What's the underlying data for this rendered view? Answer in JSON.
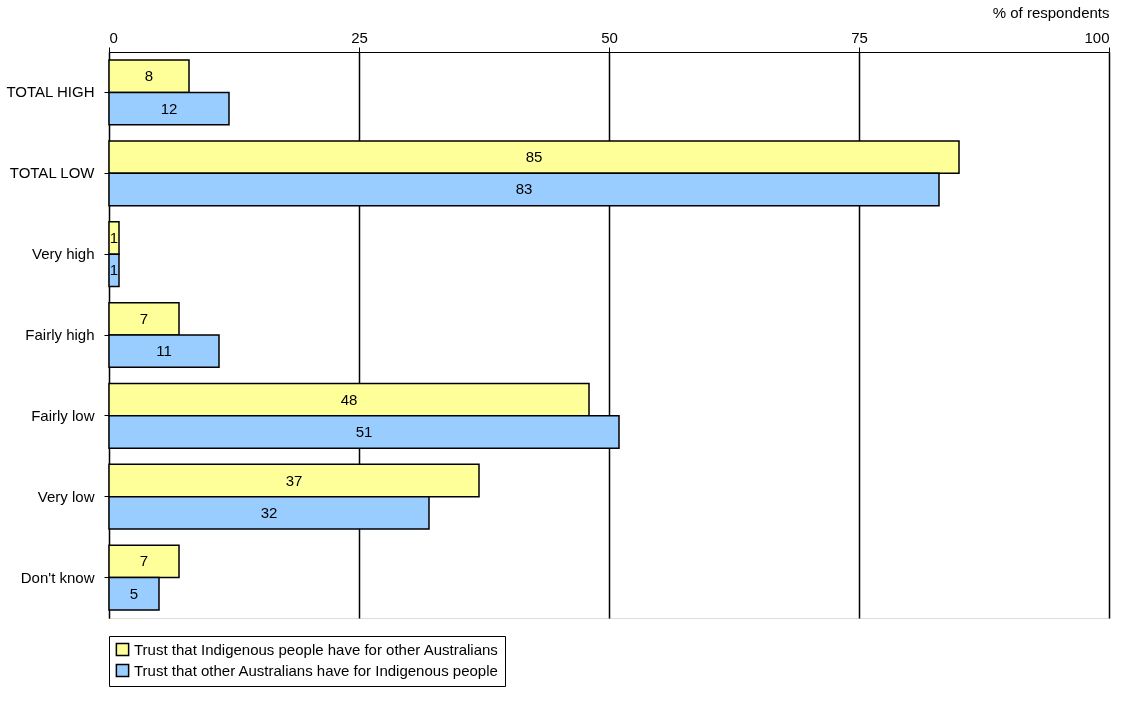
{
  "chart_data": {
    "type": "bar",
    "orientation": "horizontal",
    "xlabel": "% of respondents",
    "categories": [
      "TOTAL HIGH",
      "TOTAL LOW",
      "Very high",
      "Fairly high",
      "Fairly low",
      "Very low",
      "Don't know"
    ],
    "series": [
      {
        "name": "Trust that Indigenous people have for other Australians",
        "color": "#ffff99",
        "values": [
          8,
          85,
          1,
          7,
          48,
          37,
          7
        ]
      },
      {
        "name": "Trust that other Australians have for Indigenous people",
        "color": "#99ccff",
        "values": [
          12,
          83,
          1,
          11,
          51,
          32,
          5
        ]
      }
    ],
    "xlim": [
      0,
      100
    ],
    "xticks": [
      0,
      25,
      50,
      75,
      100
    ],
    "grid": "x",
    "legend": "bottom",
    "data_labels": true
  }
}
